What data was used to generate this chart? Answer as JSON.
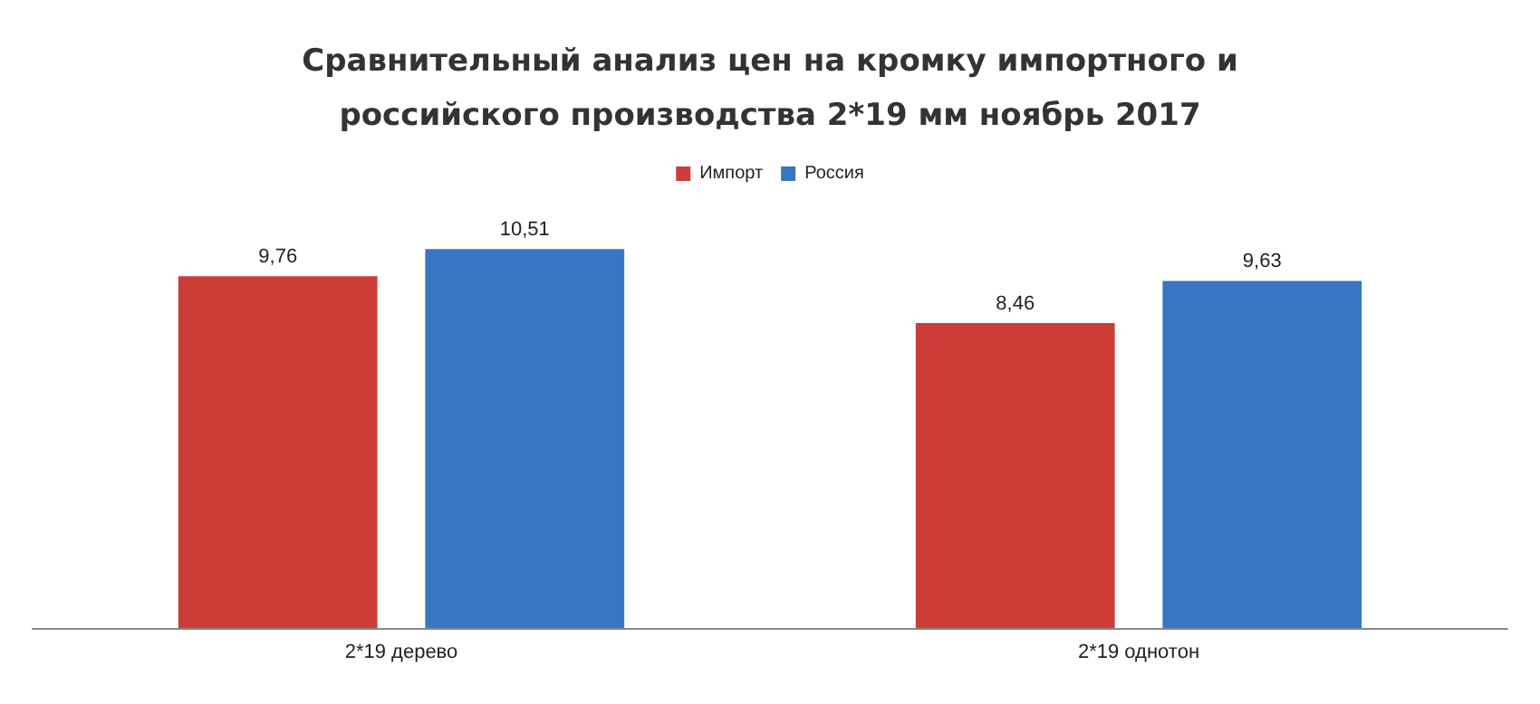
{
  "chart_data": {
    "type": "bar",
    "title": "Сравнительный анализ цен на кромку импортного и\nроссийского производства 2*19 мм ноябрь 2017",
    "categories": [
      "2*19 дерево",
      "2*19 однотон"
    ],
    "series": [
      {
        "name": "Импорт",
        "color": "#cc3d38",
        "values": [
          9.76,
          8.46
        ],
        "value_labels": [
          "9,76",
          "8,46"
        ]
      },
      {
        "name": "Россия",
        "color": "#3876c2",
        "values": [
          10.51,
          9.63
        ],
        "value_labels": [
          "10,51",
          "9,63"
        ]
      }
    ],
    "legend": "top"
  }
}
